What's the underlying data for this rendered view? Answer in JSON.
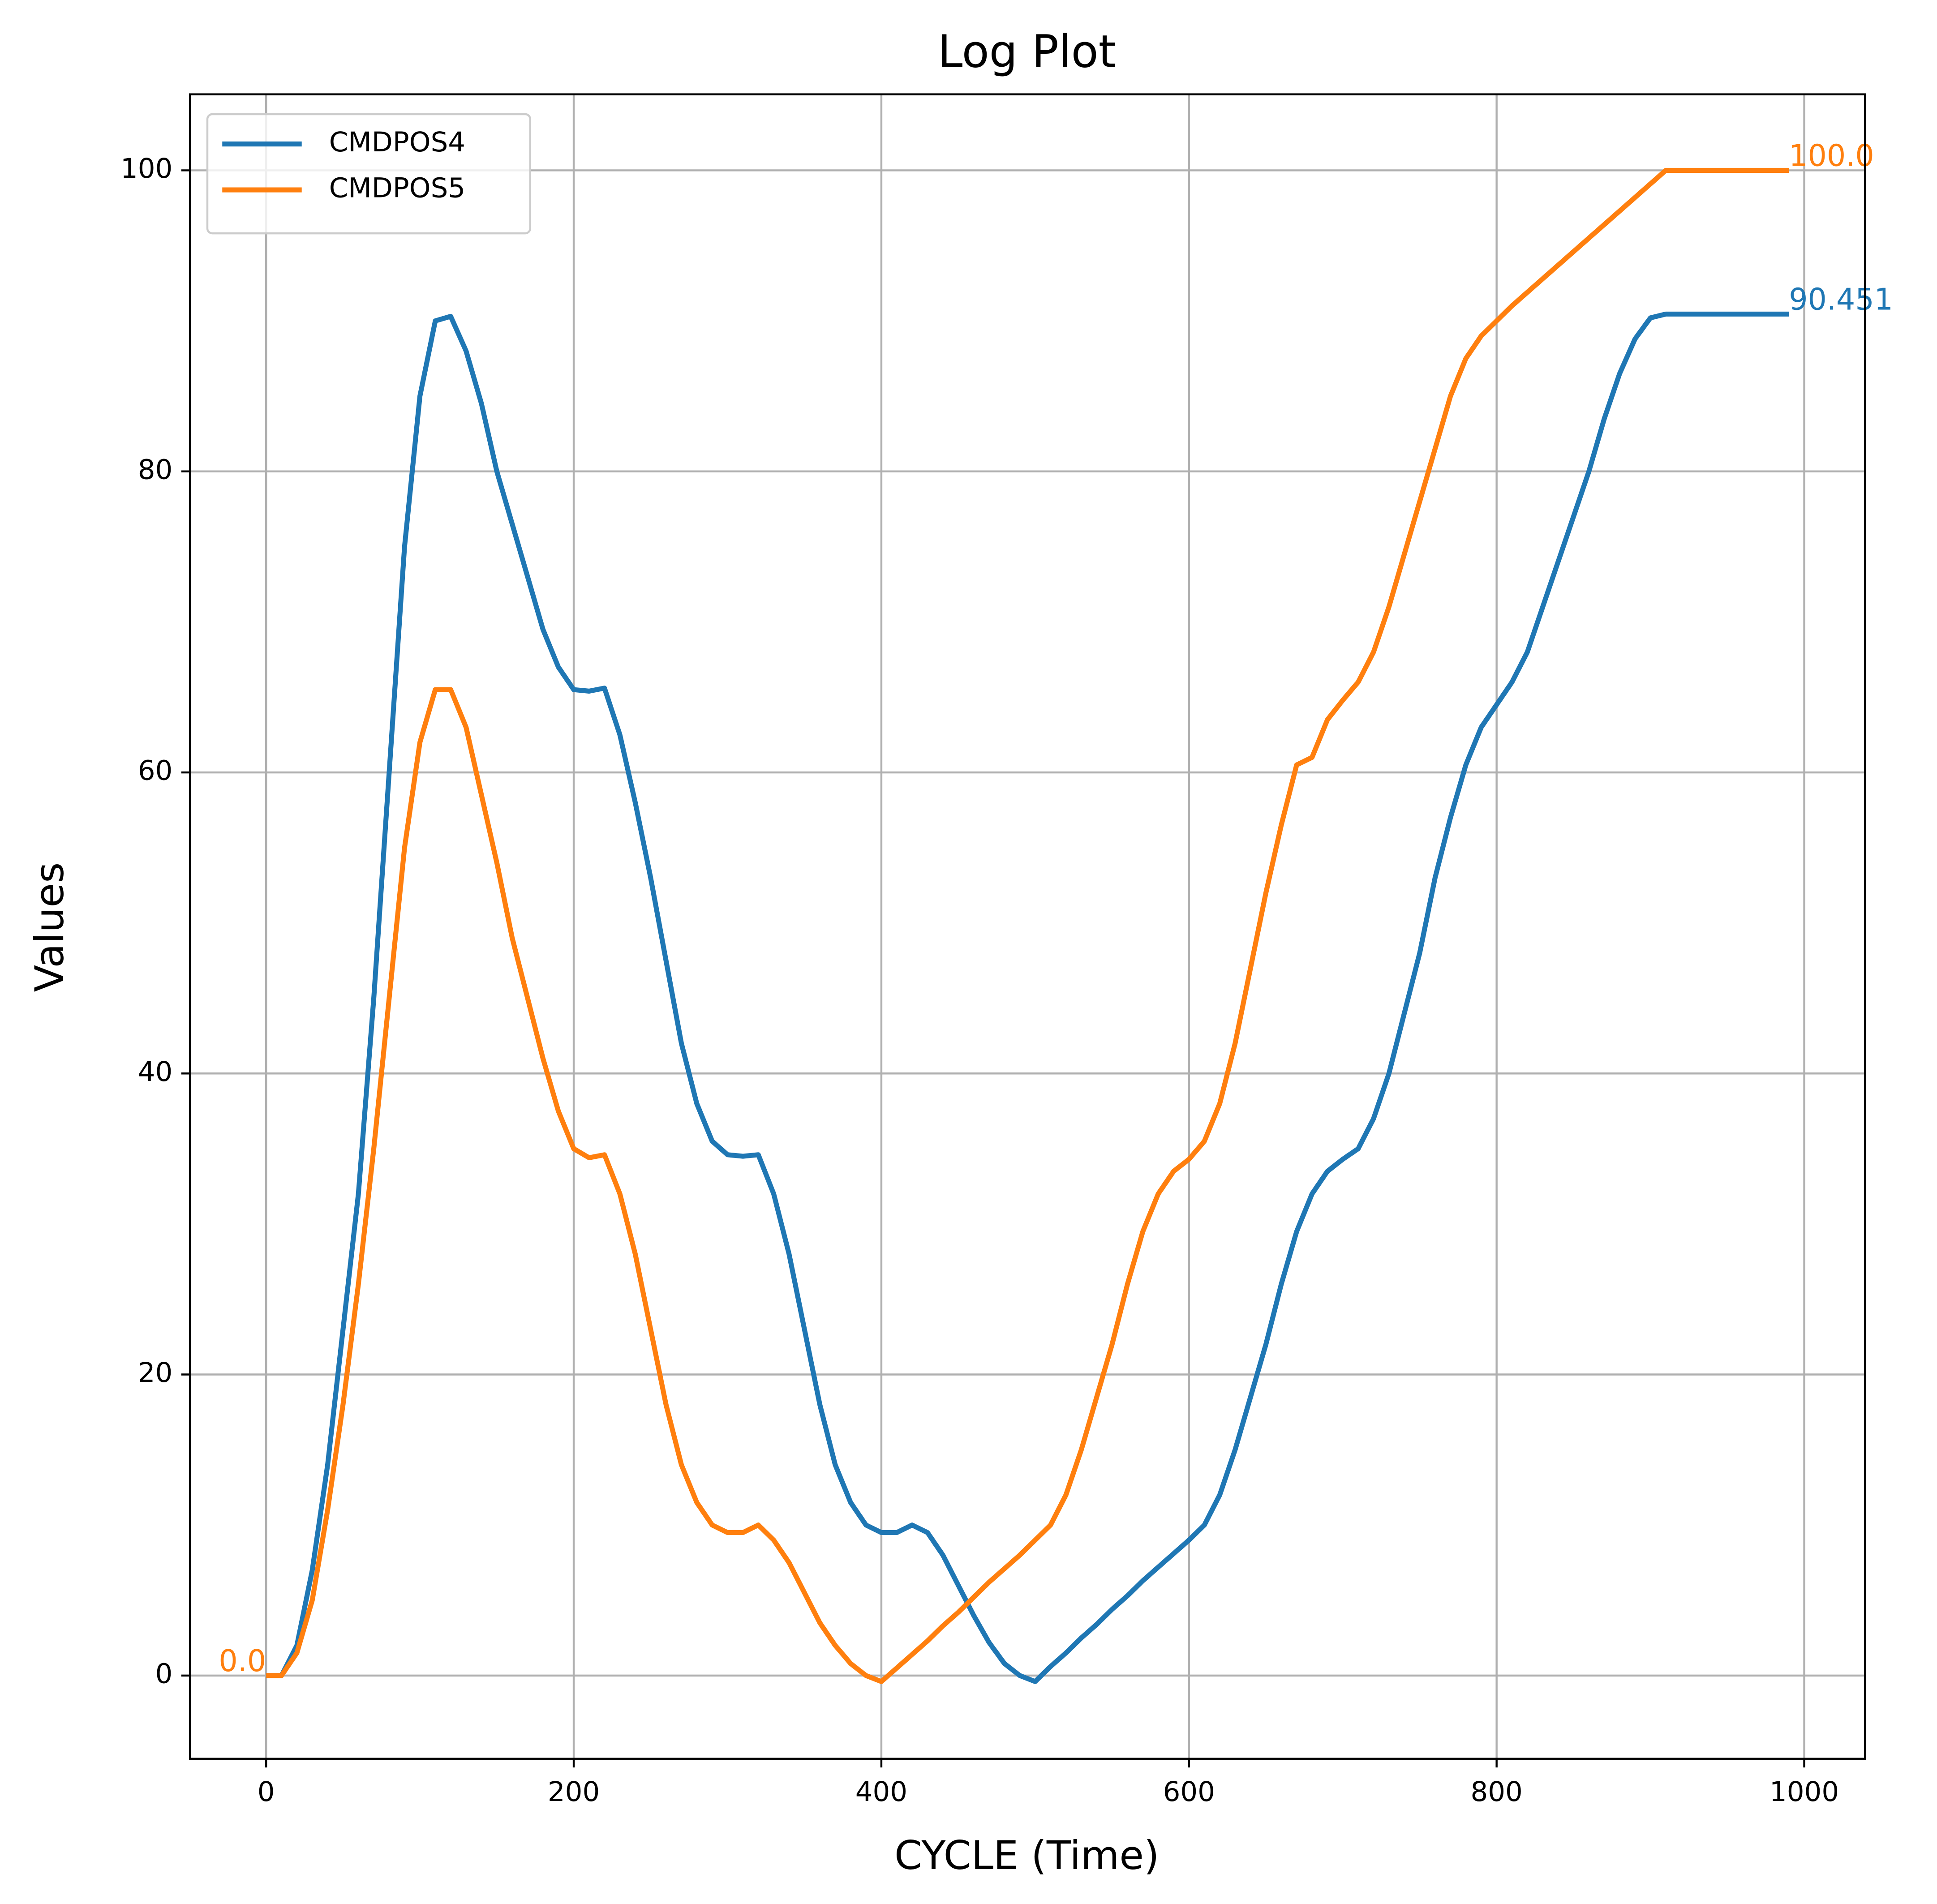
{
  "chart_data": {
    "type": "line",
    "title": "Log Plot",
    "xlabel": "CYCLE (Time)",
    "ylabel": "Values",
    "x": [
      0,
      10,
      20,
      30,
      40,
      50,
      60,
      70,
      80,
      90,
      100,
      110,
      120,
      130,
      140,
      150,
      160,
      170,
      180,
      190,
      200,
      210,
      220,
      230,
      240,
      250,
      260,
      270,
      280,
      290,
      300,
      310,
      320,
      330,
      340,
      350,
      360,
      370,
      380,
      390,
      400,
      410,
      420,
      430,
      440,
      450,
      460,
      470,
      480,
      490,
      500,
      510,
      520,
      530,
      540,
      550,
      560,
      570,
      580,
      590,
      600,
      610,
      620,
      630,
      640,
      650,
      660,
      670,
      680,
      690,
      700,
      710,
      720,
      730,
      740,
      750,
      760,
      770,
      780,
      790,
      800,
      810,
      820,
      830,
      840,
      850,
      860,
      870,
      880,
      890,
      900,
      910,
      920,
      930,
      940,
      950,
      960,
      970,
      980,
      990
    ],
    "series": [
      {
        "name": "CMDPOS4",
        "color": "#1f77b4",
        "values": [
          0,
          0,
          2,
          7,
          14,
          23,
          32,
          45,
          60,
          75,
          85,
          90,
          90.3,
          88,
          84.5,
          80,
          76.5,
          73,
          69.5,
          67,
          65.5,
          65.4,
          65.6,
          62.5,
          58,
          53,
          47.5,
          42,
          38,
          35.5,
          34.6,
          34.5,
          34.6,
          32,
          28,
          23,
          18,
          14,
          11.5,
          10,
          9.5,
          9.5,
          10,
          9.5,
          8,
          6,
          4,
          2.2,
          0.8,
          0,
          -0.4,
          0.6,
          1.5,
          2.5,
          3.4,
          4.4,
          5.3,
          6.3,
          7.2,
          8.1,
          9,
          10,
          12,
          15,
          18.5,
          22,
          26,
          29.5,
          32,
          33.5,
          34.3,
          35,
          37,
          40,
          44,
          48,
          53,
          57,
          60.5,
          63,
          64.5,
          66,
          68,
          71,
          74,
          77,
          80,
          83.5,
          86.5,
          88.8,
          90.2,
          90.451,
          90.451,
          90.451,
          90.451,
          90.451,
          90.451,
          90.451,
          90.451,
          90.451
        ]
      },
      {
        "name": "CMDPOS5",
        "color": "#ff7f0e",
        "values": [
          0,
          0,
          1.5,
          5,
          11,
          18,
          26,
          35,
          45,
          55,
          62,
          65.5,
          65.5,
          63,
          58.5,
          54,
          49,
          45,
          41,
          37.5,
          35,
          34.4,
          34.6,
          32,
          28,
          23,
          18,
          14,
          11.5,
          10,
          9.5,
          9.5,
          10,
          9,
          7.5,
          5.5,
          3.5,
          2,
          0.8,
          0,
          -0.4,
          0.5,
          1.4,
          2.3,
          3.3,
          4.2,
          5.2,
          6.2,
          7.1,
          8,
          9,
          10,
          12,
          15,
          18.5,
          22,
          26,
          29.5,
          32,
          33.5,
          34.3,
          35.5,
          38,
          42,
          47,
          52,
          56.5,
          60.5,
          61,
          63.5,
          64.8,
          66,
          68,
          71,
          74.5,
          78,
          81.5,
          85,
          87.5,
          89,
          90,
          91,
          91.9,
          92.8,
          93.7,
          94.6,
          95.5,
          96.4,
          97.3,
          98.2,
          99.1,
          100,
          100,
          100,
          100,
          100,
          100,
          100,
          100,
          100
        ]
      }
    ],
    "annotations": [
      {
        "text": "0.0",
        "x": 0,
        "y": 0,
        "color": "#ff7f0e"
      },
      {
        "text": "100.0",
        "x": 990,
        "y": 100,
        "color": "#ff7f0e"
      },
      {
        "text": "90.451",
        "x": 990,
        "y": 90.451,
        "color": "#1f77b4"
      }
    ],
    "xlim": [
      -49.5,
      1039.5
    ],
    "ylim": [
      -5.53,
      105.05
    ],
    "xticks": [
      0,
      200,
      400,
      600,
      800,
      1000
    ],
    "yticks": [
      0,
      20,
      40,
      60,
      80,
      100
    ],
    "grid": true,
    "legend": "upper left"
  }
}
